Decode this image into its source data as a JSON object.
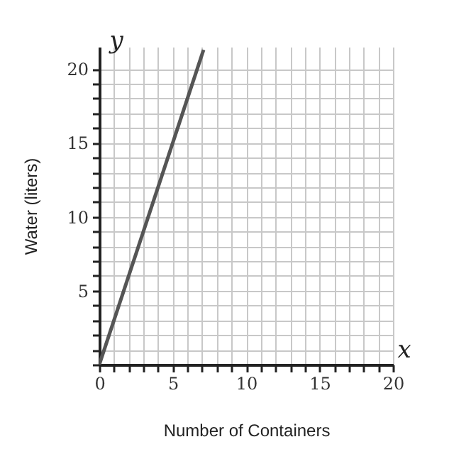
{
  "chart_data": {
    "type": "line",
    "xlabel": "Number of Containers",
    "ylabel": "Water (liters)",
    "annotations": [
      "x",
      "y"
    ],
    "x": [
      0,
      7.1
    ],
    "series": [
      {
        "color": "#555555",
        "values": [
          0,
          21.3
        ]
      }
    ],
    "xlim": [
      0,
      20
    ],
    "ylim": [
      0,
      21.5
    ],
    "xticks": [
      "0",
      {
        "value": 1,
        "label": null
      },
      {
        "value": 2,
        "label": null
      },
      {
        "value": 3,
        "label": null
      },
      {
        "value": 4,
        "label": null
      },
      5,
      {
        "value": 6,
        "label": null
      },
      {
        "value": 7,
        "label": null
      },
      {
        "value": 8,
        "label": null
      },
      {
        "value": 9,
        "label": null
      },
      10,
      {
        "value": 11,
        "label": null
      },
      {
        "value": 12,
        "label": null
      },
      {
        "value": 13,
        "label": null
      },
      {
        "value": 14,
        "label": null
      },
      15,
      {
        "value": 16,
        "label": null
      },
      {
        "value": 17,
        "label": null
      },
      {
        "value": 18,
        "label": null
      },
      {
        "value": 19,
        "label": null
      },
      20
    ],
    "yticks": [
      {
        "value": 0,
        "label": null
      },
      {
        "value": 1,
        "label": null
      },
      {
        "value": 2,
        "label": null
      },
      {
        "value": 3,
        "label": null
      },
      {
        "value": 4,
        "label": null
      },
      5,
      {
        "value": 6,
        "label": null
      },
      {
        "value": 7,
        "label": null
      },
      {
        "value": 8,
        "label": null
      },
      {
        "value": 9,
        "label": null
      },
      10,
      {
        "value": 11,
        "label": null
      },
      {
        "value": 12,
        "label": null
      },
      {
        "value": 13,
        "label": null
      },
      {
        "value": 14,
        "label": null
      },
      15,
      {
        "value": 16,
        "label": null
      },
      {
        "value": 17,
        "label": null
      },
      {
        "value": 18,
        "label": null
      },
      {
        "value": 19,
        "label": null
      },
      20
    ],
    "grid": true,
    "marker": "none",
    "line_style": "solid"
  }
}
